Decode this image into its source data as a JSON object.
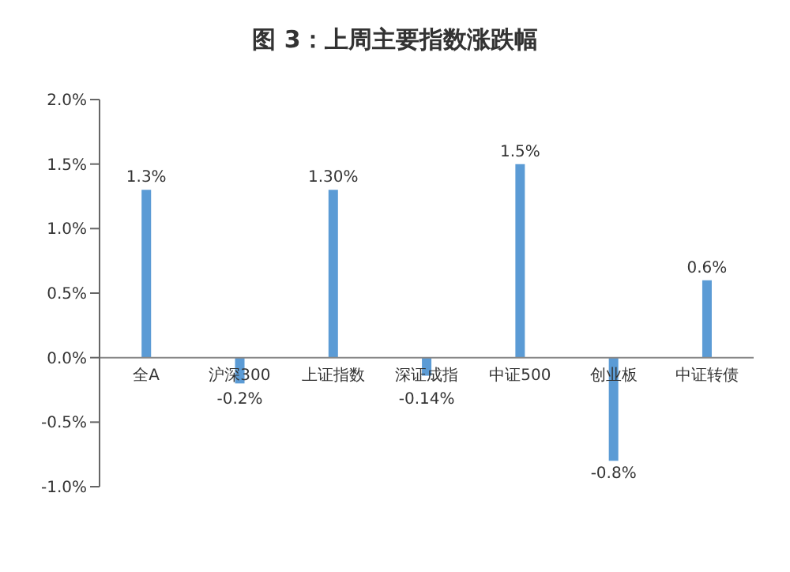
{
  "chart_data": {
    "type": "bar",
    "title": "图 3：上周主要指数涨跌幅",
    "categories": [
      "全A",
      "沪深300",
      "上证指数",
      "深证成指",
      "中证500",
      "创业板",
      "中证转债"
    ],
    "values": [
      1.3,
      -0.2,
      1.3,
      -0.14,
      1.5,
      -0.8,
      0.6
    ],
    "value_labels": [
      "1.3%",
      "-0.2%",
      "1.30%",
      "-0.14%",
      "1.5%",
      "-0.8%",
      "0.6%"
    ],
    "color": "#5b9bd5",
    "ylim": [
      -1.0,
      2.0
    ],
    "yticks": [
      {
        "value": -1.0,
        "label": "-1.0%"
      },
      {
        "value": -0.5,
        "label": "-0.5%"
      },
      {
        "value": 0,
        "label": "0.0%"
      },
      {
        "value": 0.5,
        "label": "0.5%"
      },
      {
        "value": 1.0,
        "label": "1.0%"
      },
      {
        "value": 1.5,
        "label": "1.5%"
      },
      {
        "value": 2.0,
        "label": "2.0%"
      }
    ],
    "grid": false
  }
}
